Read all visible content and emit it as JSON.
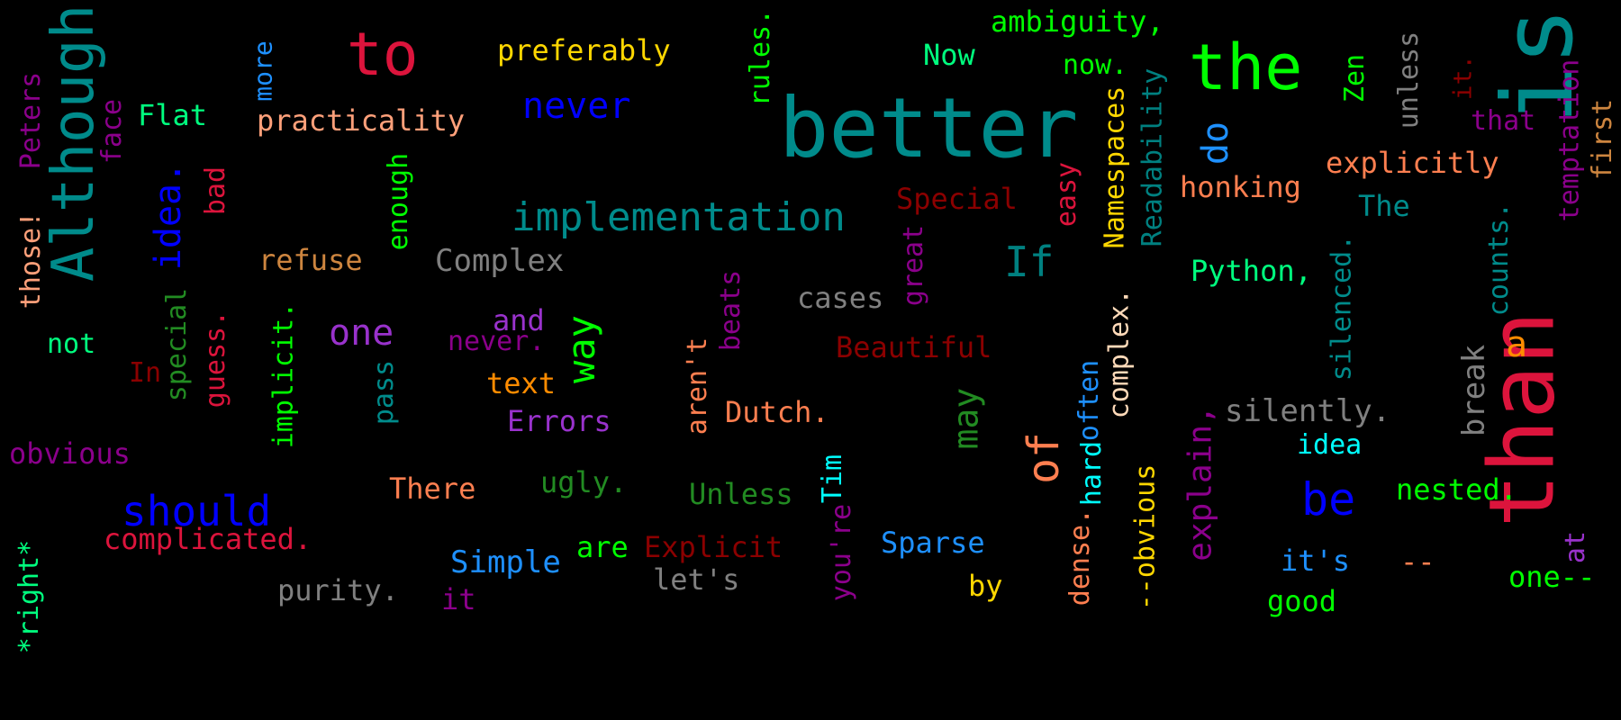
{
  "words": [
    {
      "text": "better",
      "color": "#008b8b"
    },
    {
      "text": "than",
      "color": "#dc143c"
    },
    {
      "text": "is",
      "color": "#008b8b"
    },
    {
      "text": "the",
      "color": "#00ff00"
    },
    {
      "text": "Although",
      "color": "#008b8b"
    },
    {
      "text": "to",
      "color": "#dc143c"
    },
    {
      "text": "implementation",
      "color": "#008b8b"
    },
    {
      "text": "of",
      "color": "#ff7f50"
    },
    {
      "text": "should",
      "color": "#0000ff"
    },
    {
      "text": "be",
      "color": "#0000ff"
    },
    {
      "text": "never",
      "color": "#0000ff"
    },
    {
      "text": "explain,",
      "color": "#8b008b"
    },
    {
      "text": "one",
      "color": "#9932cc"
    },
    {
      "text": "If",
      "color": "#008080"
    },
    {
      "text": "way",
      "color": "#00ff00"
    },
    {
      "text": "idea.",
      "color": "#0000ff"
    },
    {
      "text": "Namespaces",
      "color": "#ffd700"
    },
    {
      "text": "Readability",
      "color": "#008080"
    },
    {
      "text": "do",
      "color": "#1e90ff"
    },
    {
      "text": "may",
      "color": "#228b22"
    },
    {
      "text": "Beautiful",
      "color": "#8b0000"
    },
    {
      "text": "Special",
      "color": "#8b0000"
    },
    {
      "text": "explicitly",
      "color": "#ff7f50"
    },
    {
      "text": "honking",
      "color": "#ff7f50"
    },
    {
      "text": "Python,",
      "color": "#00ff7f"
    },
    {
      "text": "The",
      "color": "#008b8b"
    },
    {
      "text": "Zen",
      "color": "#00ff00"
    },
    {
      "text": "unless",
      "color": "#808080"
    },
    {
      "text": "it.",
      "color": "#8b0000"
    },
    {
      "text": "that",
      "color": "#8b008b"
    },
    {
      "text": "temptation",
      "color": "#8b008b"
    },
    {
      "text": "first",
      "color": "#cd853f"
    },
    {
      "text": "counts.",
      "color": "#008b8b"
    },
    {
      "text": "a",
      "color": "#ff8c00"
    },
    {
      "text": "break",
      "color": "#808080"
    },
    {
      "text": "silenced.",
      "color": "#008b8b"
    },
    {
      "text": "silently.",
      "color": "#808080"
    },
    {
      "text": "idea",
      "color": "#00ffff"
    },
    {
      "text": "nested.",
      "color": "#00ff00"
    },
    {
      "text": "complex.",
      "color": "#ffdab9"
    },
    {
      "text": "often",
      "color": "#1e90ff"
    },
    {
      "text": "hard",
      "color": "#00ffff"
    },
    {
      "text": "--obvious",
      "color": "#ffd700"
    },
    {
      "text": "dense.",
      "color": "#ff7f50"
    },
    {
      "text": "it's",
      "color": "#1e90ff"
    },
    {
      "text": "--",
      "color": "#ff7f50"
    },
    {
      "text": "one--",
      "color": "#00ff00"
    },
    {
      "text": "at",
      "color": "#9932cc"
    },
    {
      "text": "good",
      "color": "#00ff00"
    },
    {
      "text": "by",
      "color": "#ffd700"
    },
    {
      "text": "Sparse",
      "color": "#1e90ff"
    },
    {
      "text": "you're",
      "color": "#8b008b"
    },
    {
      "text": "Tim",
      "color": "#00ffff"
    },
    {
      "text": "Unless",
      "color": "#228b22"
    },
    {
      "text": "Explicit",
      "color": "#8b0000"
    },
    {
      "text": "let's",
      "color": "#808080"
    },
    {
      "text": "are",
      "color": "#00ff00"
    },
    {
      "text": "ugly.",
      "color": "#228b22"
    },
    {
      "text": "Dutch.",
      "color": "#ff7f50"
    },
    {
      "text": "aren't",
      "color": "#ff7f50"
    },
    {
      "text": "beats",
      "color": "#8b008b"
    },
    {
      "text": "cases",
      "color": "#808080"
    },
    {
      "text": "great",
      "color": "#8b008b"
    },
    {
      "text": "easy",
      "color": "#dc143c"
    },
    {
      "text": "ambiguity,",
      "color": "#00ff00"
    },
    {
      "text": "Now",
      "color": "#00ff7f"
    },
    {
      "text": "now.",
      "color": "#00ff00"
    },
    {
      "text": "rules.",
      "color": "#00ff00"
    },
    {
      "text": "preferably",
      "color": "#ffd700"
    },
    {
      "text": "practicality",
      "color": "#ffa07a"
    },
    {
      "text": "more",
      "color": "#1e90ff"
    },
    {
      "text": "Flat",
      "color": "#00ff7f"
    },
    {
      "text": "face",
      "color": "#8b008b"
    },
    {
      "text": "Peters",
      "color": "#8b008b"
    },
    {
      "text": "bad",
      "color": "#dc143c"
    },
    {
      "text": "enough",
      "color": "#00ff00"
    },
    {
      "text": "refuse",
      "color": "#cd853f"
    },
    {
      "text": "Complex",
      "color": "#808080"
    },
    {
      "text": "those!",
      "color": "#ffa07a"
    },
    {
      "text": "special",
      "color": "#228b22"
    },
    {
      "text": "guess.",
      "color": "#dc143c"
    },
    {
      "text": "implicit.",
      "color": "#00ff00"
    },
    {
      "text": "pass",
      "color": "#008b8b"
    },
    {
      "text": "and",
      "color": "#9932cc"
    },
    {
      "text": "never.",
      "color": "#8b008b"
    },
    {
      "text": "text",
      "color": "#ff8c00"
    },
    {
      "text": "Errors",
      "color": "#9932cc"
    },
    {
      "text": "not",
      "color": "#00ff7f"
    },
    {
      "text": "In",
      "color": "#8b0000"
    },
    {
      "text": "obvious",
      "color": "#8b008b"
    },
    {
      "text": "*right*",
      "color": "#00ff7f"
    },
    {
      "text": "complicated.",
      "color": "#dc143c"
    },
    {
      "text": "There",
      "color": "#ff7f50"
    },
    {
      "text": "Simple",
      "color": "#1e90ff"
    },
    {
      "text": "purity.",
      "color": "#808080"
    },
    {
      "text": "it",
      "color": "#8b008b"
    }
  ]
}
